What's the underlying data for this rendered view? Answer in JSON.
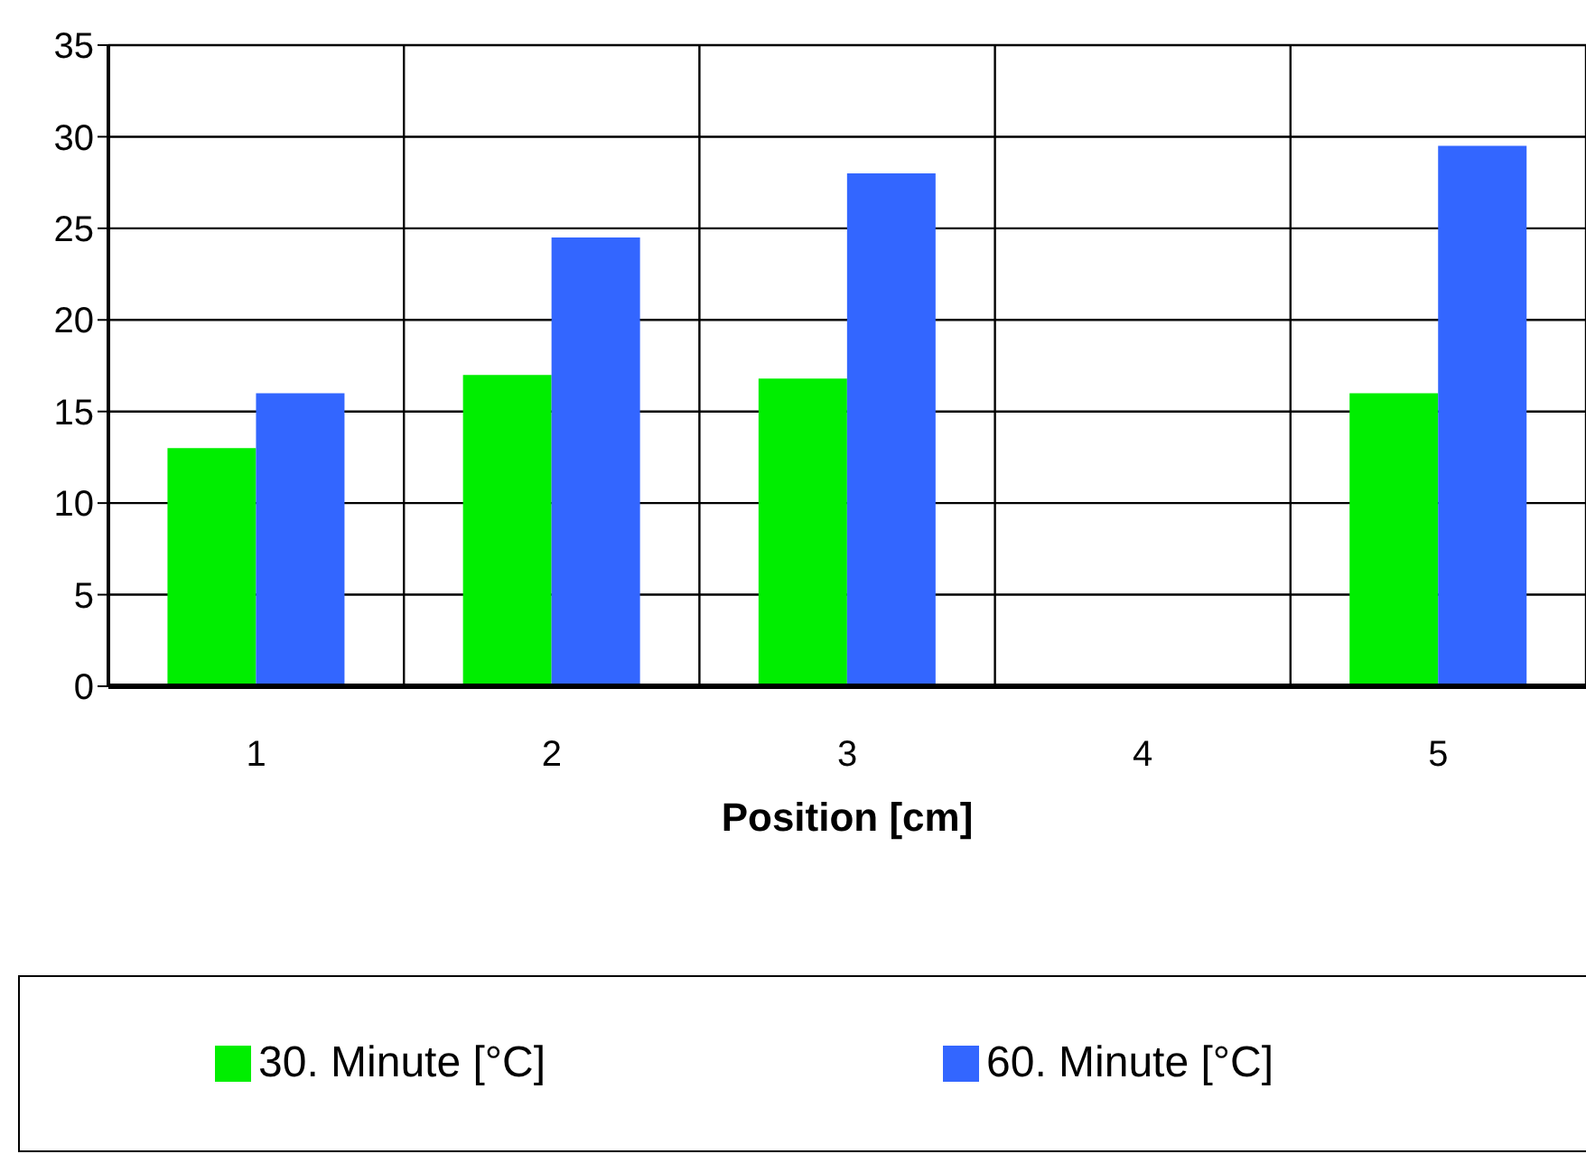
{
  "chart_data": {
    "type": "bar",
    "xlabel": "Position [cm]",
    "categories": [
      "1",
      "2",
      "3",
      "4",
      "5"
    ],
    "series": [
      {
        "name": "30. Minute [°C]",
        "color": "#00ee00",
        "values": [
          13,
          17,
          16.8,
          null,
          16
        ]
      },
      {
        "name": "60. Minute [°C]",
        "color": "#3366ff",
        "values": [
          16,
          24.5,
          28,
          null,
          29.5
        ]
      }
    ],
    "ylim": [
      0,
      35
    ],
    "yticks": [
      0,
      5,
      10,
      15,
      20,
      25,
      30,
      35
    ],
    "grid": true,
    "legend": "bottom"
  }
}
